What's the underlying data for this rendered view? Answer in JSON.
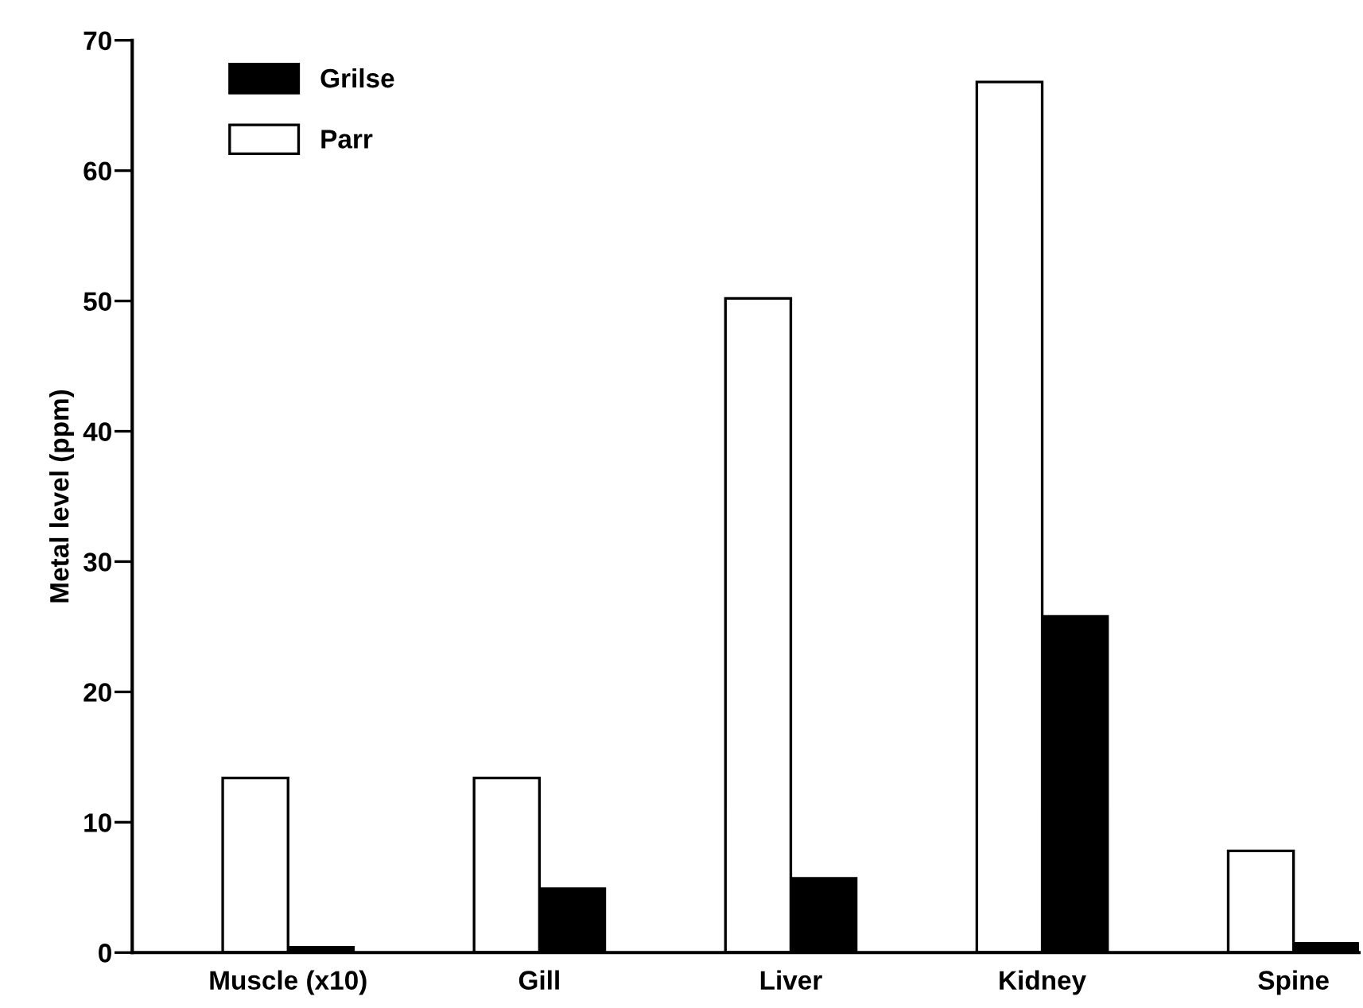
{
  "chart_data": {
    "type": "bar",
    "ylabel": "Metal level (ppm)",
    "categories": [
      "Muscle (x10)",
      "Gill",
      "Liver",
      "Kidney",
      "Spine"
    ],
    "series": [
      {
        "name": "Grilse",
        "color": "#000000",
        "values": [
          0.4,
          4.9,
          5.7,
          25.8,
          0.7
        ]
      },
      {
        "name": "Parr",
        "color": "#ffffff",
        "values": [
          13.4,
          13.4,
          50.2,
          66.8,
          7.8
        ]
      }
    ],
    "ylim": [
      0,
      70
    ],
    "yticks": [
      0,
      10,
      20,
      30,
      40,
      50,
      60,
      70
    ],
    "grid": false,
    "legend": "top left"
  }
}
